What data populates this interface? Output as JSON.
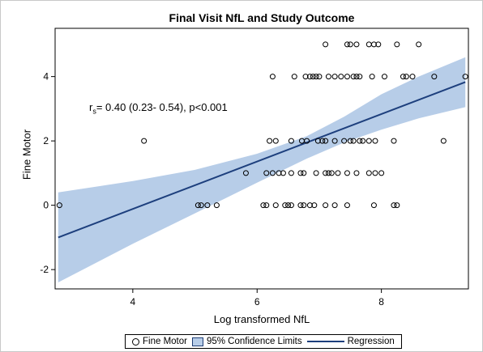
{
  "chart_data": {
    "type": "scatter",
    "title": "Final Visit NfL and Study Outcome",
    "xlabel": "Log transformed NfL",
    "ylabel": "Fine Motor",
    "xlim": [
      2.75,
      9.4
    ],
    "ylim": [
      -2.6,
      5.5
    ],
    "x_ticks": [
      "4",
      "6",
      "8"
    ],
    "y_ticks": [
      "-2",
      "0",
      "2",
      "4"
    ],
    "annotation": {
      "prefix": "r",
      "sub": "s",
      "text": "= 0.40 (0.23- 0.54), p<0.001"
    },
    "legend": {
      "items": [
        "Fine Motor",
        "95% Confidence Limits",
        "Regression"
      ],
      "placement": "bottom"
    },
    "colors": {
      "band": "#b7cde8",
      "line": "#1d3f7d",
      "points": "#000000"
    },
    "regression": {
      "x": [
        2.8,
        9.35
      ],
      "y": [
        -1.0,
        3.83
      ]
    },
    "confidence_band": {
      "x": [
        2.8,
        4.0,
        5.0,
        6.0,
        6.8,
        7.4,
        8.0,
        8.6,
        9.35
      ],
      "lower": [
        -2.4,
        -1.2,
        -0.25,
        0.7,
        1.45,
        1.95,
        2.35,
        2.7,
        3.05
      ],
      "upper": [
        0.4,
        0.75,
        1.1,
        1.6,
        2.15,
        2.75,
        3.45,
        4.0,
        4.6
      ]
    },
    "series": [
      {
        "name": "Fine Motor",
        "points": [
          [
            7.1,
            5
          ],
          [
            7.45,
            5
          ],
          [
            7.5,
            5
          ],
          [
            7.6,
            5
          ],
          [
            7.8,
            5
          ],
          [
            7.88,
            5
          ],
          [
            7.95,
            5
          ],
          [
            8.25,
            5
          ],
          [
            8.6,
            5
          ],
          [
            6.25,
            4
          ],
          [
            6.6,
            4
          ],
          [
            6.78,
            4
          ],
          [
            6.85,
            4
          ],
          [
            6.9,
            4
          ],
          [
            6.95,
            4
          ],
          [
            7.0,
            4
          ],
          [
            7.15,
            4
          ],
          [
            7.25,
            4
          ],
          [
            7.35,
            4
          ],
          [
            7.45,
            4
          ],
          [
            7.55,
            4
          ],
          [
            7.6,
            4
          ],
          [
            7.65,
            4
          ],
          [
            7.85,
            4
          ],
          [
            8.05,
            4
          ],
          [
            8.35,
            4
          ],
          [
            8.4,
            4
          ],
          [
            8.5,
            4
          ],
          [
            8.85,
            4
          ],
          [
            9.35,
            4
          ],
          [
            4.18,
            2
          ],
          [
            6.2,
            2
          ],
          [
            6.3,
            2
          ],
          [
            6.55,
            2
          ],
          [
            6.72,
            2
          ],
          [
            6.8,
            2
          ],
          [
            6.98,
            2
          ],
          [
            7.05,
            2
          ],
          [
            7.1,
            2
          ],
          [
            7.25,
            2
          ],
          [
            7.4,
            2
          ],
          [
            7.5,
            2
          ],
          [
            7.55,
            2
          ],
          [
            7.65,
            2
          ],
          [
            7.7,
            2
          ],
          [
            7.8,
            2
          ],
          [
            7.9,
            2
          ],
          [
            8.2,
            2
          ],
          [
            9.0,
            2
          ],
          [
            5.82,
            1
          ],
          [
            6.15,
            1
          ],
          [
            6.25,
            1
          ],
          [
            6.35,
            1
          ],
          [
            6.42,
            1
          ],
          [
            6.55,
            1
          ],
          [
            6.7,
            1
          ],
          [
            6.75,
            1
          ],
          [
            6.95,
            1
          ],
          [
            7.1,
            1
          ],
          [
            7.15,
            1
          ],
          [
            7.2,
            1
          ],
          [
            7.3,
            1
          ],
          [
            7.45,
            1
          ],
          [
            7.6,
            1
          ],
          [
            7.8,
            1
          ],
          [
            7.9,
            1
          ],
          [
            8.0,
            1
          ],
          [
            2.82,
            0
          ],
          [
            5.05,
            0
          ],
          [
            5.1,
            0
          ],
          [
            5.2,
            0
          ],
          [
            5.35,
            0
          ],
          [
            6.1,
            0
          ],
          [
            6.15,
            0
          ],
          [
            6.3,
            0
          ],
          [
            6.45,
            0
          ],
          [
            6.5,
            0
          ],
          [
            6.55,
            0
          ],
          [
            6.7,
            0
          ],
          [
            6.75,
            0
          ],
          [
            6.85,
            0
          ],
          [
            6.92,
            0
          ],
          [
            7.1,
            0
          ],
          [
            7.25,
            0
          ],
          [
            7.45,
            0
          ],
          [
            7.88,
            0
          ],
          [
            8.2,
            0
          ],
          [
            8.25,
            0
          ]
        ]
      }
    ]
  }
}
